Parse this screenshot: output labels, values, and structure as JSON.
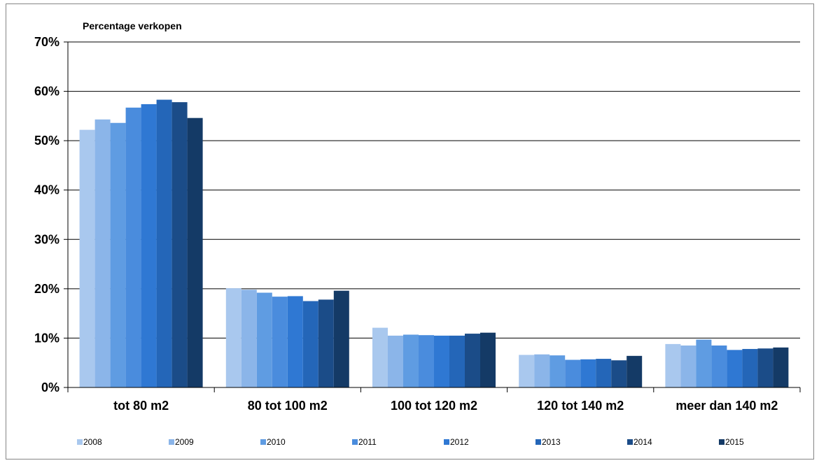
{
  "chart_data": {
    "type": "bar",
    "ylabel": "Percentage verkopen",
    "xlabel": "",
    "ylim": [
      0,
      70
    ],
    "yticks": [
      "0%",
      "10%",
      "20%",
      "30%",
      "40%",
      "50%",
      "60%",
      "70%"
    ],
    "ytick_values": [
      0,
      10,
      20,
      30,
      40,
      50,
      60,
      70
    ],
    "grid": true,
    "legend_position": "bottom",
    "categories": [
      "tot 80 m2",
      "80 tot 100 m2",
      "100 tot 120 m2",
      "120 tot 140 m2",
      "meer dan 140 m2"
    ],
    "series": [
      {
        "name": "2008",
        "color": "#a9c8ee",
        "values": [
          52.2,
          20.1,
          12.1,
          6.6,
          8.8
        ]
      },
      {
        "name": "2009",
        "color": "#8bb5e9",
        "values": [
          54.3,
          19.8,
          10.5,
          6.7,
          8.5
        ]
      },
      {
        "name": "2010",
        "color": "#5f9ce2",
        "values": [
          53.6,
          19.2,
          10.7,
          6.5,
          9.7
        ]
      },
      {
        "name": "2011",
        "color": "#4a8cdd",
        "values": [
          56.7,
          18.4,
          10.6,
          5.6,
          8.5
        ]
      },
      {
        "name": "2012",
        "color": "#2f78d3",
        "values": [
          57.4,
          18.5,
          10.5,
          5.7,
          7.6
        ]
      },
      {
        "name": "2013",
        "color": "#2466b8",
        "values": [
          58.3,
          17.5,
          10.5,
          5.8,
          7.8
        ]
      },
      {
        "name": "2014",
        "color": "#1b4c88",
        "values": [
          57.8,
          17.8,
          10.9,
          5.5,
          7.9
        ]
      },
      {
        "name": "2015",
        "color": "#143a66",
        "values": [
          54.6,
          19.6,
          11.1,
          6.4,
          8.1
        ]
      }
    ]
  }
}
